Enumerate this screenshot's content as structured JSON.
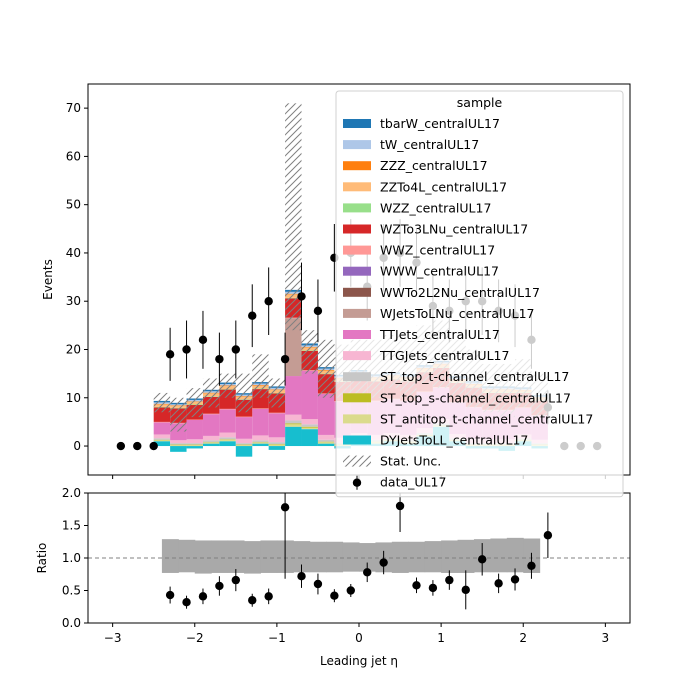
{
  "chart_data": [
    {
      "type": "bar",
      "subtype": "stacked-histogram-with-data",
      "xlim": [
        -3.3,
        3.3
      ],
      "ylim": [
        -6,
        75
      ],
      "ylabel": "Events",
      "yticks": [
        0,
        10,
        20,
        30,
        40,
        50,
        60,
        70
      ],
      "bin_edges": [
        -2.5,
        -2.3,
        -2.1,
        -1.9,
        -1.7,
        -1.5,
        -1.3,
        -1.1,
        -0.9,
        -0.7,
        -0.5,
        -0.3,
        -0.1,
        0.1,
        0.3,
        0.5,
        0.7,
        0.9,
        1.1,
        1.3,
        1.5,
        1.7,
        1.9,
        2.1,
        2.3
      ],
      "series": [
        {
          "name": "DYJetsToLL_centralUL17",
          "color": "#17becf",
          "values": [
            1.0,
            -1.2,
            -0.5,
            0.5,
            1.0,
            -2.2,
            0.5,
            -0.8,
            4.0,
            3.5,
            0.5,
            -0.5,
            1.0,
            0.5,
            1.0,
            0.5,
            2.0,
            4.0,
            1.0,
            -0.5,
            -0.5,
            -1.0,
            1.0,
            -0.5
          ]
        },
        {
          "name": "ST_antitop_t-channel_centralUL17",
          "color": "#dbdb8d",
          "values": [
            0.2,
            0.2,
            0.2,
            0.2,
            0.3,
            0.2,
            0.2,
            0.3,
            0.5,
            0.3,
            0.3,
            0.2,
            0.2,
            0.3,
            0.2,
            0.3,
            0.2,
            0.2,
            0.2,
            0.2,
            0.2,
            0.2,
            0.2,
            0.2
          ]
        },
        {
          "name": "ST_top_s-channel_centralUL17",
          "color": "#bcbd22",
          "values": [
            0.1,
            0.1,
            0.1,
            0.1,
            0.1,
            0.1,
            0.1,
            0.1,
            0.2,
            0.2,
            0.1,
            0.1,
            0.1,
            0.1,
            0.1,
            0.1,
            0.1,
            0.1,
            0.1,
            0.1,
            0.1,
            0.1,
            0.1,
            0.1
          ]
        },
        {
          "name": "ST_top_t-channel_centralUL17",
          "color": "#c7c7c7",
          "values": [
            0.3,
            0.3,
            0.3,
            0.4,
            0.4,
            0.3,
            0.4,
            0.4,
            0.6,
            0.5,
            0.4,
            0.4,
            0.4,
            0.4,
            0.4,
            0.4,
            0.4,
            0.4,
            0.3,
            0.3,
            0.3,
            0.3,
            0.3,
            0.3
          ]
        },
        {
          "name": "TTGJets_centralUL17",
          "color": "#f7b6d2",
          "values": [
            0.8,
            0.6,
            0.8,
            0.9,
            1.0,
            0.9,
            1.0,
            1.0,
            1.2,
            1.1,
            1.0,
            1.0,
            1.0,
            1.0,
            1.0,
            1.0,
            1.0,
            0.9,
            0.9,
            0.9,
            0.8,
            0.8,
            0.8,
            0.7
          ]
        },
        {
          "name": "TTJets_centralUL17",
          "color": "#e377c2",
          "values": [
            2.5,
            3.5,
            4.0,
            4.5,
            4.8,
            4.5,
            5.5,
            5.0,
            8.0,
            10.0,
            8.5,
            7.5,
            7.5,
            7.0,
            7.0,
            7.0,
            7.5,
            6.5,
            6.5,
            6.5,
            6.0,
            6.0,
            5.5,
            5.0
          ]
        },
        {
          "name": "WJetsToLNu_centralUL17",
          "color": "#c49c94",
          "values": [
            0.0,
            0.0,
            0.0,
            0.0,
            0.0,
            0.0,
            0.0,
            0.0,
            12.0,
            0.0,
            0.0,
            0.0,
            0.0,
            0.0,
            0.0,
            0.0,
            0.0,
            0.0,
            0.0,
            0.0,
            0.0,
            0.0,
            0.0,
            0.0
          ]
        },
        {
          "name": "WWTo2L2Nu_centralUL17",
          "color": "#8c564b",
          "values": [
            0.0,
            0.0,
            0.0,
            0.0,
            0.0,
            0.0,
            0.0,
            0.0,
            0.0,
            0.0,
            0.0,
            0.0,
            0.0,
            0.0,
            0.0,
            0.0,
            0.0,
            0.0,
            0.0,
            0.0,
            0.0,
            0.0,
            0.0,
            0.0
          ]
        },
        {
          "name": "WWW_centralUL17",
          "color": "#9467bd",
          "values": [
            0.0,
            0.0,
            0.0,
            0.0,
            0.0,
            0.0,
            0.0,
            0.0,
            0.0,
            0.0,
            0.0,
            0.0,
            0.0,
            0.0,
            0.0,
            0.0,
            0.0,
            0.0,
            0.0,
            0.0,
            0.0,
            0.0,
            0.0,
            0.0
          ]
        },
        {
          "name": "WWZ_centralUL17",
          "color": "#ff9896",
          "values": [
            0.1,
            0.1,
            0.1,
            0.1,
            0.1,
            0.1,
            0.1,
            0.1,
            0.1,
            0.1,
            0.1,
            0.1,
            0.1,
            0.1,
            0.1,
            0.1,
            0.1,
            0.1,
            0.1,
            0.1,
            0.1,
            0.1,
            0.1,
            0.1
          ]
        },
        {
          "name": "WZTo3LNu_centralUL17",
          "color": "#d62728",
          "values": [
            3.0,
            3.0,
            3.0,
            3.5,
            4.0,
            3.5,
            4.0,
            4.0,
            4.0,
            4.0,
            4.0,
            4.0,
            4.0,
            4.0,
            4.0,
            4.0,
            4.0,
            4.0,
            4.0,
            4.0,
            3.5,
            3.5,
            3.0,
            3.0
          ]
        },
        {
          "name": "WZZ_centralUL17",
          "color": "#98df8a",
          "values": [
            0.1,
            0.1,
            0.1,
            0.1,
            0.1,
            0.1,
            0.1,
            0.1,
            0.1,
            0.1,
            0.1,
            0.1,
            0.1,
            0.1,
            0.1,
            0.1,
            0.1,
            0.1,
            0.1,
            0.1,
            0.1,
            0.1,
            0.1,
            0.1
          ]
        },
        {
          "name": "ZZTo4L_centralUL17",
          "color": "#ffbb78",
          "values": [
            0.6,
            0.5,
            0.6,
            0.7,
            0.7,
            0.6,
            0.7,
            0.7,
            0.8,
            0.7,
            0.7,
            0.7,
            0.7,
            0.7,
            0.7,
            0.7,
            0.7,
            0.7,
            0.6,
            0.6,
            0.6,
            0.6,
            0.5,
            0.5
          ]
        },
        {
          "name": "ZZZ_centralUL17",
          "color": "#ff7f0e",
          "values": [
            0.05,
            0.05,
            0.05,
            0.05,
            0.05,
            0.05,
            0.05,
            0.05,
            0.05,
            0.05,
            0.05,
            0.05,
            0.05,
            0.05,
            0.05,
            0.05,
            0.05,
            0.05,
            0.05,
            0.05,
            0.05,
            0.05,
            0.05,
            0.05
          ]
        },
        {
          "name": "tW_centralUL17",
          "color": "#aec7e8",
          "values": [
            0.3,
            0.2,
            0.3,
            0.3,
            0.3,
            0.3,
            0.3,
            0.3,
            0.4,
            0.3,
            0.3,
            0.3,
            0.3,
            0.3,
            0.3,
            0.3,
            0.3,
            0.3,
            0.3,
            0.3,
            0.3,
            0.3,
            0.2,
            0.2
          ]
        },
        {
          "name": "tbarW_centralUL17",
          "color": "#1f77b4",
          "values": [
            0.3,
            0.3,
            0.3,
            0.3,
            0.3,
            0.3,
            0.3,
            0.3,
            0.4,
            0.4,
            0.3,
            0.3,
            0.3,
            0.3,
            0.3,
            0.3,
            0.3,
            0.3,
            0.3,
            0.3,
            0.3,
            0.3,
            0.3,
            0.3
          ]
        }
      ],
      "stat_unc": {
        "name": "Stat. Unc.",
        "lower": [
          7.0,
          3.0,
          6.0,
          8.0,
          10.0,
          7.0,
          10.0,
          8.0,
          24.0,
          15.0,
          10.0,
          10.0,
          10.0,
          10.0,
          12.0,
          10.0,
          13.0,
          12.0,
          10.0,
          8.0,
          7.0,
          6.0,
          8.0,
          6.0
        ],
        "upper": [
          11.0,
          10.0,
          12.0,
          14.0,
          15.0,
          15.0,
          19.0,
          14.0,
          71.0,
          24.0,
          22.0,
          21.0,
          22.0,
          22.0,
          23.0,
          22.0,
          25.0,
          26.0,
          22.0,
          20.0,
          17.0,
          17.0,
          18.0,
          15.0
        ]
      },
      "data": {
        "name": "data_UL17",
        "x": [
          -2.9,
          -2.7,
          -2.5,
          -2.3,
          -2.1,
          -1.9,
          -1.7,
          -1.5,
          -1.3,
          -1.1,
          -0.9,
          -0.7,
          -0.5,
          -0.3,
          -0.1,
          0.1,
          0.3,
          0.5,
          0.7,
          0.9,
          1.1,
          1.3,
          1.5,
          1.7,
          1.9,
          2.1,
          2.3,
          2.5,
          2.7,
          2.9
        ],
        "y": [
          0,
          0,
          0,
          19,
          20,
          22,
          18,
          20,
          27,
          30,
          18,
          31,
          28,
          39,
          40,
          33,
          39,
          40,
          38,
          29,
          28,
          30,
          30,
          28,
          27,
          22,
          8,
          0,
          0,
          0
        ],
        "err": [
          0,
          0,
          0,
          5.5,
          6,
          6,
          5.5,
          6,
          6.5,
          7,
          5.5,
          7,
          6.5,
          7,
          7,
          7,
          7,
          7,
          7,
          6.5,
          6.5,
          7,
          7,
          6.5,
          6.5,
          6,
          3.5,
          0,
          0,
          0
        ]
      },
      "legend": {
        "title": "sample",
        "placement": "upper-right"
      }
    },
    {
      "type": "scatter",
      "subtype": "ratio-panel",
      "xlim": [
        -3.3,
        3.3
      ],
      "ylim": [
        0,
        2
      ],
      "xlabel": "Leading jet  η",
      "ylabel": "Ratio",
      "xticks": [
        -3,
        -2,
        -1,
        0,
        1,
        2,
        3
      ],
      "yticks": [
        0.0,
        0.5,
        1.0,
        1.5,
        2.0
      ],
      "reference_line": 1.0,
      "band": {
        "edges": [
          -2.4,
          -2.2,
          -2.0,
          -1.8,
          -1.6,
          -1.4,
          -1.2,
          -1.0,
          -0.8,
          -0.6,
          -0.4,
          -0.2,
          0.0,
          0.2,
          0.4,
          0.6,
          0.8,
          1.0,
          1.2,
          1.4,
          1.6,
          1.8,
          2.0,
          2.2
        ],
        "lower": [
          0.77,
          0.78,
          0.76,
          0.77,
          0.77,
          0.76,
          0.77,
          0.77,
          0.78,
          0.78,
          0.78,
          0.79,
          0.79,
          0.78,
          0.77,
          0.78,
          0.78,
          0.77,
          0.77,
          0.78,
          0.78,
          0.78,
          0.77
        ],
        "upper": [
          1.29,
          1.28,
          1.27,
          1.27,
          1.27,
          1.26,
          1.27,
          1.27,
          1.26,
          1.25,
          1.25,
          1.24,
          1.23,
          1.24,
          1.25,
          1.25,
          1.26,
          1.27,
          1.28,
          1.29,
          1.3,
          1.31,
          1.3
        ]
      },
      "points": {
        "x": [
          -2.3,
          -2.1,
          -1.9,
          -1.7,
          -1.5,
          -1.3,
          -1.1,
          -0.9,
          -0.7,
          -0.5,
          -0.3,
          -0.1,
          0.1,
          0.3,
          0.5,
          0.7,
          0.9,
          1.1,
          1.3,
          1.5,
          1.7,
          1.9,
          2.1,
          2.3
        ],
        "y": [
          0.43,
          0.32,
          0.41,
          0.57,
          0.66,
          0.35,
          0.41,
          1.78,
          0.72,
          0.6,
          0.42,
          0.5,
          0.78,
          0.93,
          1.8,
          0.58,
          0.54,
          0.66,
          0.51,
          0.98,
          0.61,
          0.67,
          0.88,
          1.35
        ],
        "err": [
          0.13,
          0.1,
          0.12,
          0.15,
          0.17,
          0.1,
          0.12,
          1.1,
          0.18,
          0.16,
          0.1,
          0.1,
          0.15,
          0.18,
          0.4,
          0.12,
          0.12,
          0.15,
          0.3,
          0.25,
          0.15,
          0.17,
          0.2,
          0.35
        ]
      }
    }
  ]
}
